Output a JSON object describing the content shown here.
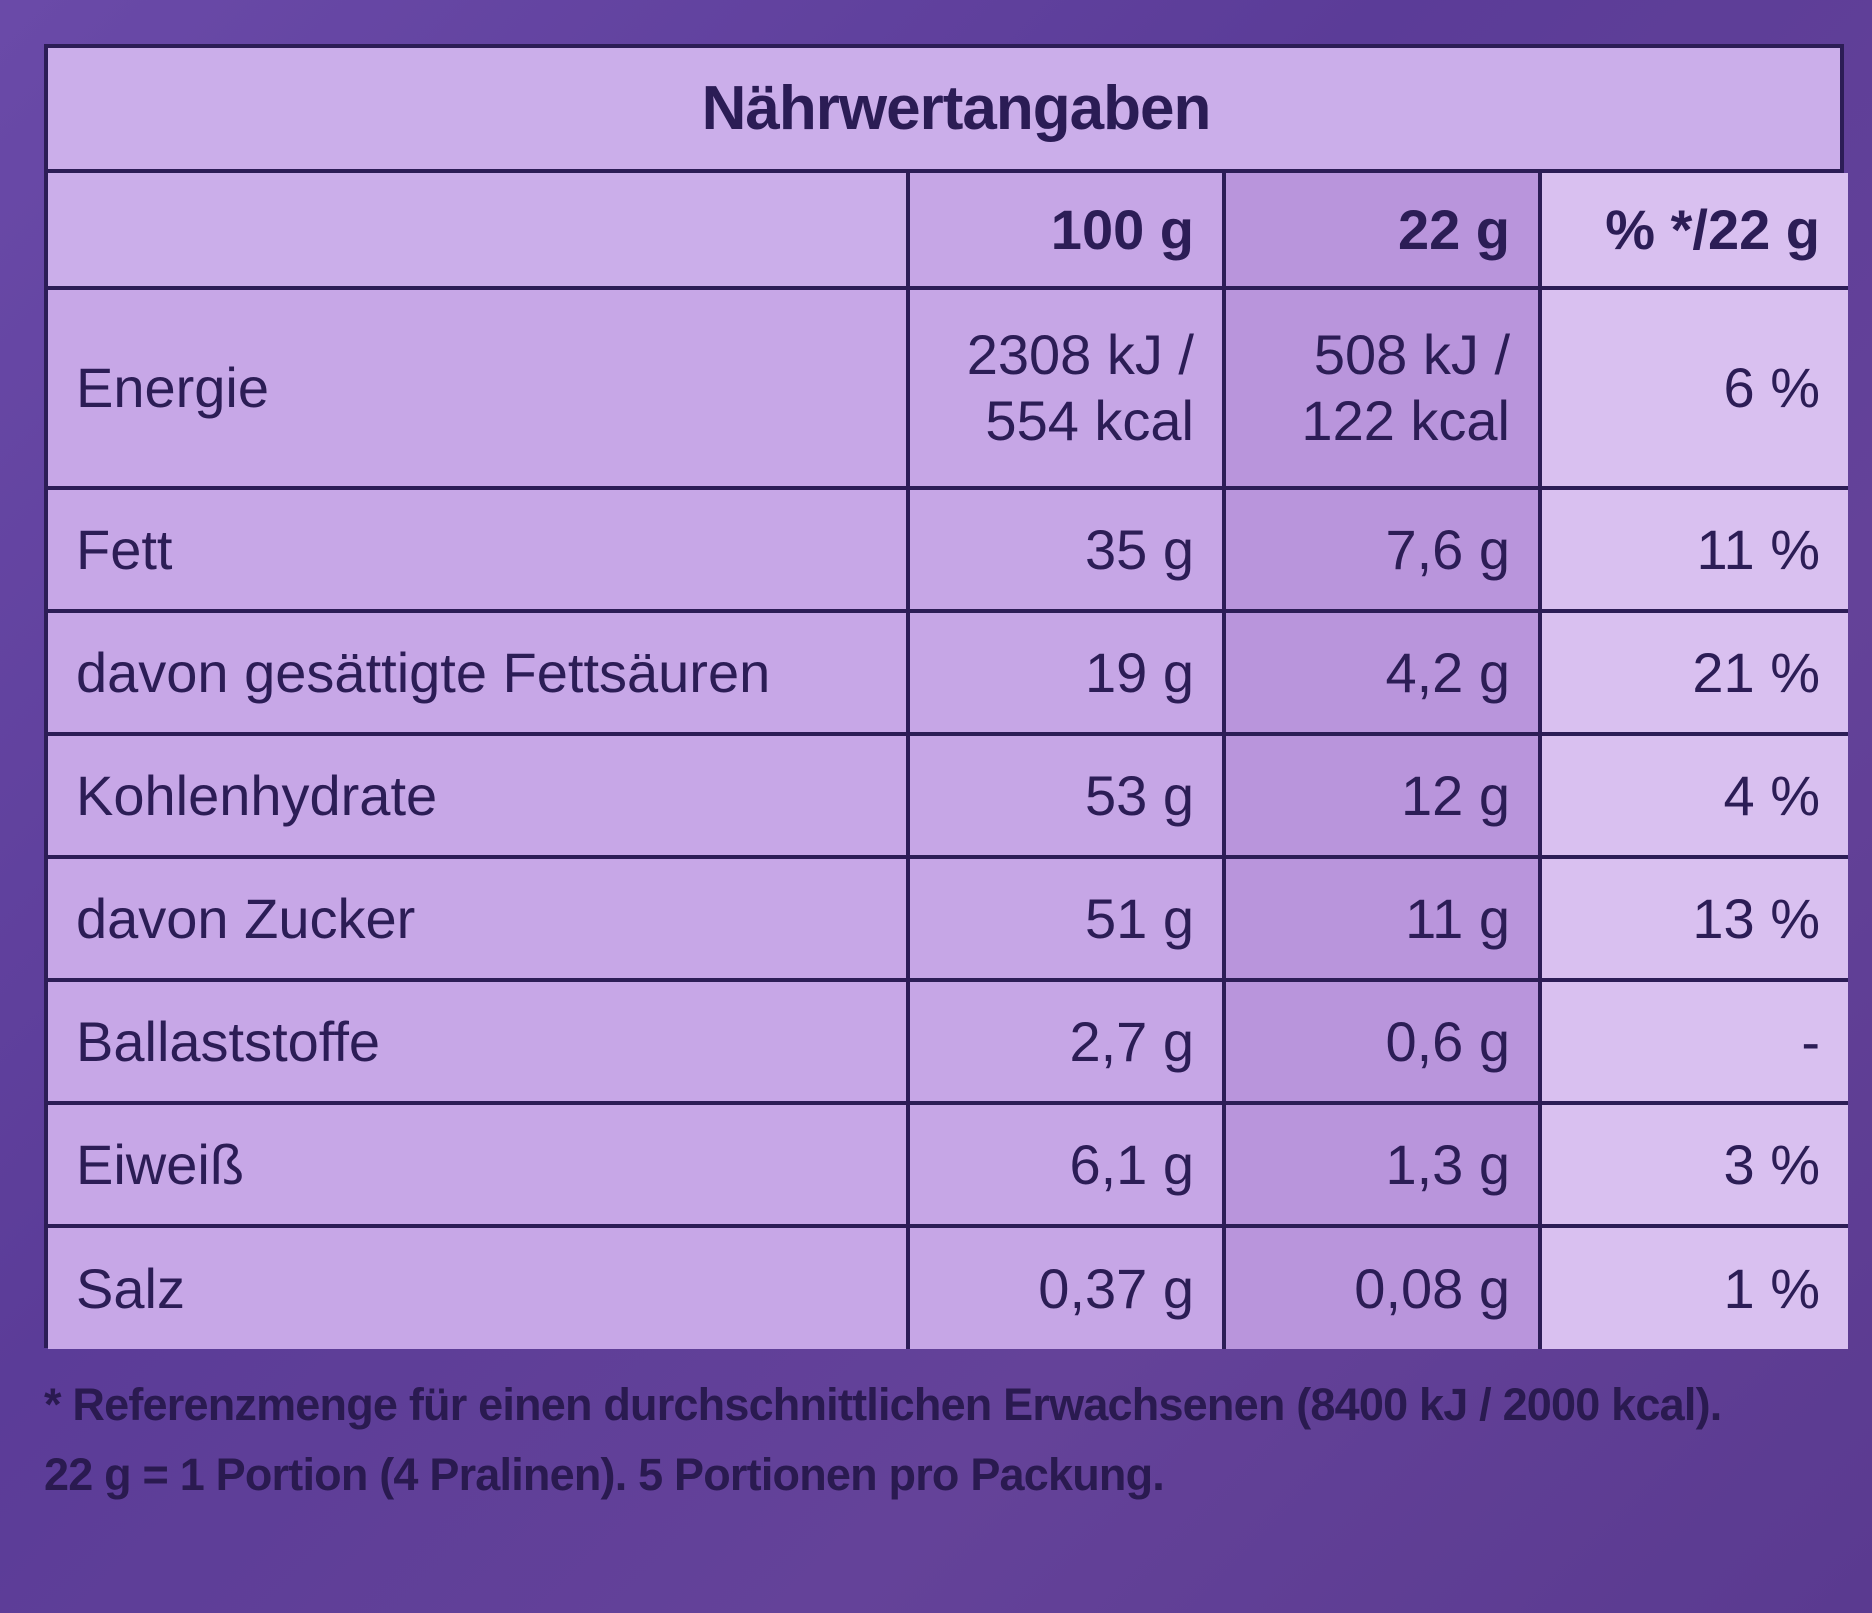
{
  "title": "Nährwertangaben",
  "columns": [
    "",
    "100 g",
    "22 g",
    "% */22 g"
  ],
  "energy": {
    "label": "Energie",
    "per100_line1": "2308 kJ /",
    "per100_line2": "554 kcal",
    "per22_line1": "508 kJ /",
    "per22_line2": "122 kcal",
    "pct": "6 %"
  },
  "rows": [
    {
      "label": "Fett",
      "per100": "35 g",
      "per22": "7,6 g",
      "pct": "11 %"
    },
    {
      "label": "davon gesättigte Fettsäuren",
      "per100": "19 g",
      "per22": "4,2 g",
      "pct": "21 %"
    },
    {
      "label": "Kohlenhydrate",
      "per100": "53 g",
      "per22": "12 g",
      "pct": "4 %"
    },
    {
      "label": "davon Zucker",
      "per100": "51 g",
      "per22": "11 g",
      "pct": "13 %"
    },
    {
      "label": "Ballaststoffe",
      "per100": "2,7 g",
      "per22": "0,6 g",
      "pct": "-"
    },
    {
      "label": "Eiweiß",
      "per100": "6,1 g",
      "per22": "1,3 g",
      "pct": "3 %"
    },
    {
      "label": "Salz",
      "per100": "0,37 g",
      "per22": "0,08 g",
      "pct": "1 %"
    }
  ],
  "footnote": {
    "line1": "* Referenzmenge für einen durchschnittlichen Erwachsenen (8400 kJ / 2000 kcal).",
    "line2": "22 g = 1 Portion (4 Pralinen). 5 Portionen pro Packung."
  },
  "colors": {
    "background": "#5b3c98",
    "table_fill": "#c8a8e8",
    "ink": "#2c1d56"
  }
}
